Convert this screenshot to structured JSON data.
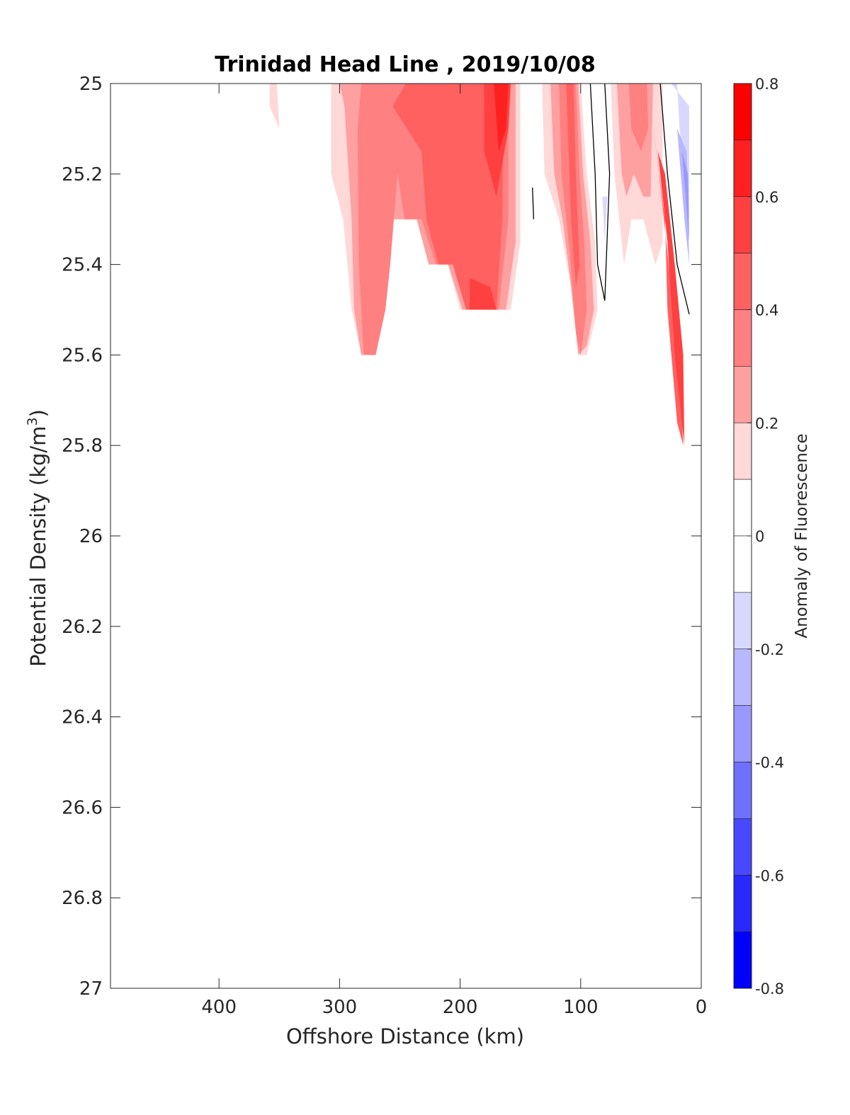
{
  "chart_data": {
    "type": "contour",
    "title": "Trinidad Head Line , 2019/10/08",
    "xlabel": "Offshore Distance (km)",
    "ylabel": "Potential Density (kg/m",
    "ylabel_sup": "3",
    "ylabel_close": ")",
    "xlim": [
      490,
      0
    ],
    "ylim": [
      25,
      27
    ],
    "y_reversed": true,
    "x_reversed": true,
    "xticks": [
      400,
      300,
      200,
      100,
      0
    ],
    "xtick_labels": [
      "400",
      "300",
      "200",
      "100",
      "0"
    ],
    "yticks": [
      25,
      25.2,
      25.4,
      25.6,
      25.8,
      26,
      26.2,
      26.4,
      26.6,
      26.8,
      27
    ],
    "ytick_labels": [
      "25",
      "25.2",
      "25.4",
      "25.6",
      "25.8",
      "26",
      "26.2",
      "26.4",
      "26.6",
      "26.8",
      "27"
    ],
    "colorbar": {
      "label": "Anomaly of Fluorescence",
      "range": [
        -0.8,
        0.8
      ],
      "ticks": [
        0.8,
        0.6,
        0.4,
        0.2,
        0,
        -0.2,
        -0.4,
        -0.6,
        -0.8
      ],
      "tick_labels": [
        "0.8",
        "0.6",
        "0.4",
        "0.2",
        "0",
        "-0.2",
        "-0.4",
        "-0.6",
        "-0.8"
      ],
      "levels": [
        {
          "from": 0.7,
          "to": 0.8,
          "color": "#ff0000"
        },
        {
          "from": 0.6,
          "to": 0.7,
          "color": "#ff2020"
        },
        {
          "from": 0.5,
          "to": 0.6,
          "color": "#ff4040"
        },
        {
          "from": 0.4,
          "to": 0.5,
          "color": "#ff6060"
        },
        {
          "from": 0.3,
          "to": 0.4,
          "color": "#ff8080"
        },
        {
          "from": 0.2,
          "to": 0.3,
          "color": "#ffa0a0"
        },
        {
          "from": 0.1,
          "to": 0.2,
          "color": "#ffd8d8"
        },
        {
          "from": 0.0,
          "to": 0.1,
          "color": "#ffffff"
        },
        {
          "from": -0.1,
          "to": 0.0,
          "color": "#ffffff"
        },
        {
          "from": -0.2,
          "to": -0.1,
          "color": "#d8d8ff"
        },
        {
          "from": -0.3,
          "to": -0.2,
          "color": "#b8b8ff"
        },
        {
          "from": -0.4,
          "to": -0.3,
          "color": "#9898ff"
        },
        {
          "from": -0.5,
          "to": -0.4,
          "color": "#7070ff"
        },
        {
          "from": -0.6,
          "to": -0.5,
          "color": "#4848ff"
        },
        {
          "from": -0.7,
          "to": -0.6,
          "color": "#2828ff"
        },
        {
          "from": -0.8,
          "to": -0.7,
          "color": "#0000ff"
        }
      ]
    },
    "regions": [
      {
        "value": 0.15,
        "color": "#ffd8d8",
        "points": [
          [
            358,
            25.0
          ],
          [
            352,
            25.0
          ],
          [
            350,
            25.1
          ],
          [
            358,
            25.05
          ]
        ]
      },
      {
        "value": 0.15,
        "color": "#ffd8d8",
        "points": [
          [
            307,
            25.0
          ],
          [
            150,
            25.0
          ],
          [
            150,
            25.35
          ],
          [
            158,
            25.5
          ],
          [
            200,
            25.5
          ],
          [
            210,
            25.4
          ],
          [
            226,
            25.4
          ],
          [
            236,
            25.3
          ],
          [
            256,
            25.3
          ],
          [
            268,
            25.4
          ],
          [
            270,
            25.6
          ],
          [
            282,
            25.6
          ],
          [
            290,
            25.5
          ],
          [
            297,
            25.3
          ],
          [
            307,
            25.2
          ]
        ]
      },
      {
        "value": 0.25,
        "color": "#ffa0a0",
        "points": [
          [
            300,
            25.0
          ],
          [
            154,
            25.0
          ],
          [
            154,
            25.35
          ],
          [
            162,
            25.5
          ],
          [
            198,
            25.5
          ],
          [
            210,
            25.4
          ],
          [
            226,
            25.4
          ],
          [
            236,
            25.3
          ],
          [
            256,
            25.3
          ],
          [
            268,
            25.4
          ],
          [
            270,
            25.6
          ],
          [
            282,
            25.6
          ],
          [
            288,
            25.5
          ],
          [
            290,
            25.3
          ],
          [
            296,
            25.05
          ]
        ]
      },
      {
        "value": 0.35,
        "color": "#ff8080",
        "points": [
          [
            282,
            25.0
          ],
          [
            160,
            25.0
          ],
          [
            160,
            25.3
          ],
          [
            168,
            25.5
          ],
          [
            195,
            25.5
          ],
          [
            206,
            25.4
          ],
          [
            220,
            25.4
          ],
          [
            232,
            25.3
          ],
          [
            246,
            25.3
          ],
          [
            252,
            25.2
          ],
          [
            258,
            25.4
          ],
          [
            262,
            25.5
          ],
          [
            270,
            25.6
          ],
          [
            280,
            25.6
          ],
          [
            284,
            25.4
          ],
          [
            285,
            25.1
          ]
        ]
      },
      {
        "value": 0.45,
        "color": "#ff6060",
        "points": [
          [
            245,
            25.0
          ],
          [
            164,
            25.0
          ],
          [
            165,
            25.3
          ],
          [
            170,
            25.5
          ],
          [
            195,
            25.5
          ],
          [
            206,
            25.4
          ],
          [
            218,
            25.4
          ],
          [
            228,
            25.3
          ],
          [
            232,
            25.15
          ],
          [
            244,
            25.1
          ],
          [
            256,
            25.05
          ]
        ]
      },
      {
        "value": 0.55,
        "color": "#ff4040",
        "points": [
          [
            180,
            25.0
          ],
          [
            158,
            25.0
          ],
          [
            160,
            25.1
          ],
          [
            170,
            25.25
          ],
          [
            180,
            25.15
          ]
        ]
      },
      {
        "value": 0.55,
        "color": "#ff4040",
        "points": [
          [
            192,
            25.43
          ],
          [
            175,
            25.45
          ],
          [
            170,
            25.5
          ],
          [
            192,
            25.5
          ]
        ]
      },
      {
        "value": 0.65,
        "color": "#ff2020",
        "points": [
          [
            172,
            25.0
          ],
          [
            160,
            25.0
          ],
          [
            162,
            25.1
          ],
          [
            168,
            25.15
          ]
        ]
      },
      {
        "value": 0.15,
        "color": "#ffd8d8",
        "points": [
          [
            132,
            25.0
          ],
          [
            100,
            25.0
          ],
          [
            95,
            25.2
          ],
          [
            88,
            25.35
          ],
          [
            86,
            25.5
          ],
          [
            95,
            25.6
          ],
          [
            102,
            25.6
          ],
          [
            108,
            25.45
          ],
          [
            118,
            25.3
          ],
          [
            130,
            25.2
          ]
        ]
      },
      {
        "value": 0.25,
        "color": "#ffa0a0",
        "points": [
          [
            125,
            25.0
          ],
          [
            102,
            25.0
          ],
          [
            98,
            25.2
          ],
          [
            92,
            25.35
          ],
          [
            89,
            25.5
          ],
          [
            95,
            25.58
          ],
          [
            102,
            25.6
          ],
          [
            108,
            25.45
          ],
          [
            115,
            25.3
          ],
          [
            122,
            25.2
          ]
        ]
      },
      {
        "value": 0.35,
        "color": "#ff8080",
        "points": [
          [
            118,
            25.0
          ],
          [
            104,
            25.0
          ],
          [
            101,
            25.2
          ],
          [
            97,
            25.35
          ],
          [
            95,
            25.5
          ],
          [
            100,
            25.6
          ],
          [
            104,
            25.55
          ],
          [
            110,
            25.35
          ],
          [
            116,
            25.2
          ]
        ]
      },
      {
        "value": 0.45,
        "color": "#ff6060",
        "points": [
          [
            112,
            25.0
          ],
          [
            106,
            25.0
          ],
          [
            104,
            25.2
          ],
          [
            101,
            25.4
          ],
          [
            104,
            25.45
          ],
          [
            108,
            25.3
          ]
        ]
      },
      {
        "value": 0.15,
        "color": "#ffd8d8",
        "points": [
          [
            75,
            25.0
          ],
          [
            32,
            25.0
          ],
          [
            32,
            25.35
          ],
          [
            38,
            25.4
          ],
          [
            48,
            25.3
          ],
          [
            58,
            25.3
          ],
          [
            64,
            25.4
          ],
          [
            68,
            25.3
          ],
          [
            72,
            25.2
          ]
        ]
      },
      {
        "value": 0.25,
        "color": "#ffa0a0",
        "points": [
          [
            70,
            25.0
          ],
          [
            40,
            25.0
          ],
          [
            42,
            25.25
          ],
          [
            48,
            25.25
          ],
          [
            56,
            25.2
          ],
          [
            62,
            25.25
          ],
          [
            66,
            25.2
          ],
          [
            68,
            25.1
          ]
        ]
      },
      {
        "value": 0.35,
        "color": "#ff8080",
        "points": [
          [
            60,
            25.0
          ],
          [
            45,
            25.0
          ],
          [
            44,
            25.1
          ],
          [
            50,
            25.15
          ],
          [
            58,
            25.1
          ]
        ]
      },
      {
        "value": 0.45,
        "color": "#ff6060",
        "points": [
          [
            42,
            25.05
          ],
          [
            30,
            25.3
          ],
          [
            28,
            25.5
          ],
          [
            20,
            25.75
          ],
          [
            15,
            25.8
          ],
          [
            18,
            25.6
          ],
          [
            25,
            25.45
          ],
          [
            35,
            25.2
          ]
        ]
      },
      {
        "value": 0.55,
        "color": "#ff4040",
        "points": [
          [
            36,
            25.15
          ],
          [
            28,
            25.35
          ],
          [
            22,
            25.6
          ],
          [
            16,
            25.75
          ],
          [
            14,
            25.8
          ],
          [
            15,
            25.6
          ],
          [
            22,
            25.4
          ],
          [
            30,
            25.2
          ]
        ]
      },
      {
        "value": -0.15,
        "color": "#d8d8ff",
        "points": [
          [
            25,
            25.0
          ],
          [
            20,
            25.0
          ],
          [
            18,
            25.1
          ],
          [
            10,
            25.3
          ],
          [
            10,
            25.05
          ]
        ]
      },
      {
        "value": -0.25,
        "color": "#b8b8ff",
        "points": [
          [
            20,
            25.1
          ],
          [
            12,
            25.15
          ],
          [
            10,
            25.4
          ],
          [
            14,
            25.3
          ]
        ]
      },
      {
        "value": -0.35,
        "color": "#9898ff",
        "points": [
          [
            16,
            25.15
          ],
          [
            11,
            25.2
          ],
          [
            10,
            25.35
          ],
          [
            13,
            25.25
          ]
        ]
      },
      {
        "value": -0.15,
        "color": "#d8d8ff",
        "points": [
          [
            82,
            25.25
          ],
          [
            78,
            25.25
          ],
          [
            80,
            25.35
          ]
        ]
      }
    ],
    "zero_contours": [
      {
        "points": [
          [
            92,
            25.0
          ],
          [
            88,
            25.2
          ],
          [
            86,
            25.4
          ],
          [
            80,
            25.48
          ],
          [
            76,
            25.2
          ],
          [
            80,
            25.0
          ]
        ]
      },
      {
        "points": [
          [
            34,
            25.0
          ],
          [
            28,
            25.2
          ],
          [
            20,
            25.4
          ],
          [
            10,
            25.51
          ]
        ]
      },
      {
        "points": [
          [
            140,
            25.23
          ],
          [
            139,
            25.3
          ]
        ]
      }
    ]
  }
}
